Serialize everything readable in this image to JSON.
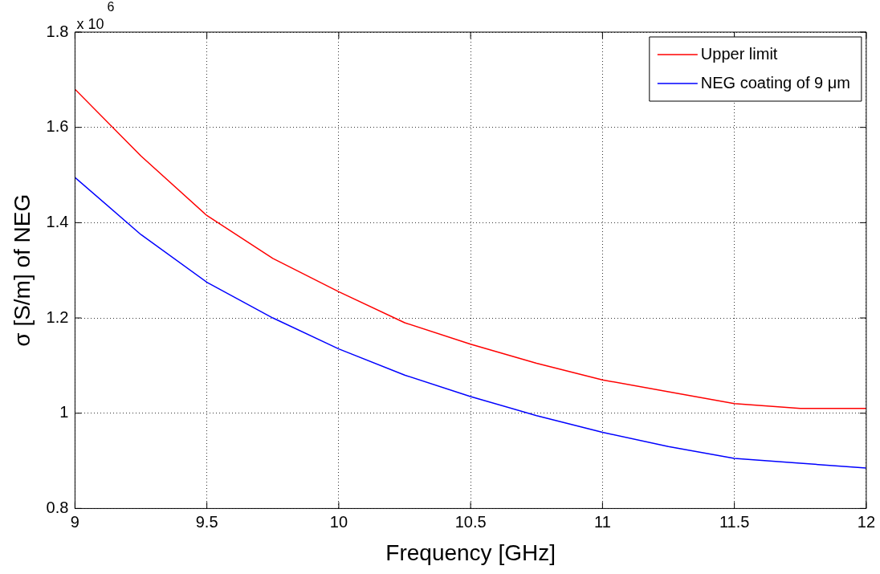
{
  "chart_data": {
    "type": "line",
    "xlabel": "Frequency [GHz]",
    "ylabel": "σ [S/m] of NEG",
    "annotations": [
      "x 10$^{6}$"
    ],
    "series": [
      {
        "name": "Upper limit",
        "color": "#ff0000",
        "x": [
          9,
          9.25,
          9.5,
          9.75,
          10,
          10.25,
          10.5,
          10.75,
          11,
          11.25,
          11.5,
          11.75,
          12
        ],
        "values": [
          1.68,
          1.54,
          1.415,
          1.325,
          1.255,
          1.19,
          1.145,
          1.105,
          1.07,
          1.045,
          1.02,
          1.01,
          1.01
        ]
      },
      {
        "name": "NEG coating of 9 μm",
        "color": "#0000ff",
        "x": [
          9,
          9.25,
          9.5,
          9.75,
          10,
          10.25,
          10.5,
          10.75,
          11,
          11.25,
          11.5,
          11.75,
          12
        ],
        "values": [
          1.495,
          1.375,
          1.275,
          1.2,
          1.135,
          1.08,
          1.035,
          0.995,
          0.96,
          0.93,
          0.905,
          0.895,
          0.885
        ]
      }
    ],
    "xlim": [
      9,
      12
    ],
    "xticks": [
      9,
      9.5,
      10,
      10.5,
      11,
      11.5,
      12
    ],
    "ylim": [
      0.8,
      1.8
    ],
    "yticks": [
      0.8,
      1,
      1.2,
      1.4,
      1.6,
      1.8
    ],
    "grid": true,
    "legend": "top right",
    "marker": "none",
    "line_style": "solid"
  }
}
